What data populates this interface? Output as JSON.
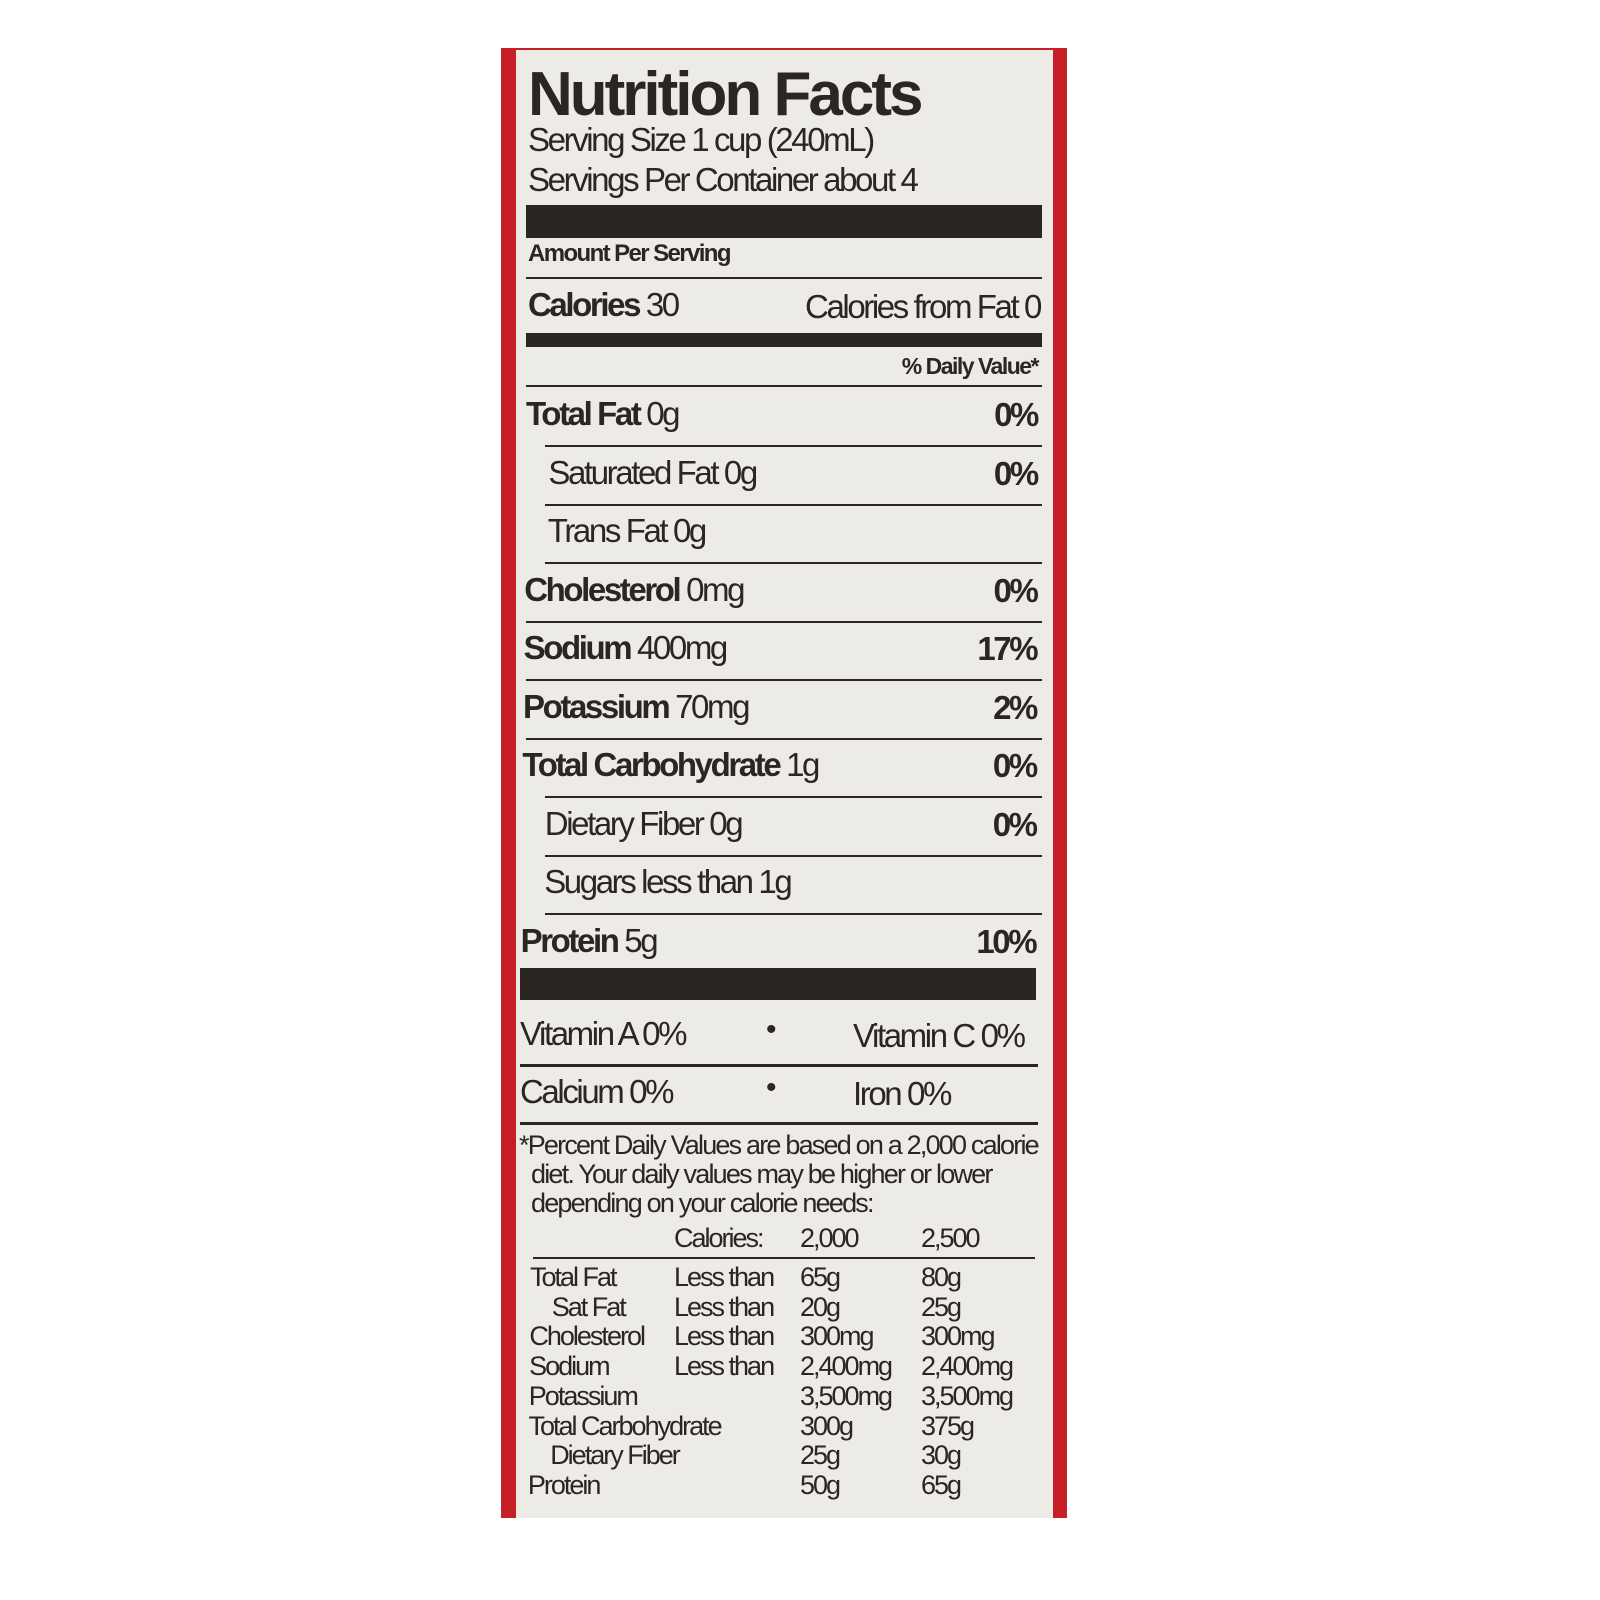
{
  "title": "Nutrition Facts",
  "serving_size": "Serving Size 1 cup (240mL)",
  "servings_per_container": "Servings Per Container about 4",
  "amount_per_serving": "Amount Per Serving",
  "calories_label": "Calories",
  "calories_value": "30",
  "calories_from_fat": "Calories from Fat 0",
  "daily_value_header": "% Daily Value*",
  "nutrients": [
    {
      "name": "Total Fat",
      "amount": "0g",
      "dv": "0%",
      "bold": true,
      "indent": false
    },
    {
      "name": "Saturated Fat",
      "amount": "0g",
      "dv": "0%",
      "bold": false,
      "indent": true
    },
    {
      "name": "Trans Fat",
      "amount": "0g",
      "dv": "",
      "bold": false,
      "indent": true
    },
    {
      "name": "Cholesterol",
      "amount": "0mg",
      "dv": "0%",
      "bold": true,
      "indent": false
    },
    {
      "name": "Sodium",
      "amount": "400mg",
      "dv": "17%",
      "bold": true,
      "indent": false
    },
    {
      "name": "Potassium",
      "amount": "70mg",
      "dv": "2%",
      "bold": true,
      "indent": false
    },
    {
      "name": "Total Carbohydrate",
      "amount": "1g",
      "dv": "0%",
      "bold": true,
      "indent": false
    },
    {
      "name": "Dietary Fiber",
      "amount": "0g",
      "dv": "0%",
      "bold": false,
      "indent": true
    },
    {
      "name": "Sugars",
      "amount": "less than 1g",
      "dv": "",
      "bold": false,
      "indent": true
    },
    {
      "name": "Protein",
      "amount": "5g",
      "dv": "10%",
      "bold": true,
      "indent": false
    }
  ],
  "vitamins": [
    {
      "left": "Vitamin A 0%",
      "bullet": "•",
      "right": "Vitamin C 0%"
    },
    {
      "left": "Calcium 0%",
      "bullet": "•",
      "right": "Iron 0%"
    }
  ],
  "footnote": [
    "*Percent Daily Values are based on a 2,000 calorie",
    "diet. Your daily values may be higher or lower",
    "depending on your calorie needs:"
  ],
  "reference_table": {
    "header": [
      "",
      "Calories:",
      "2,000",
      "2,500"
    ],
    "rows": [
      [
        "Total Fat",
        "Less than",
        "65g",
        "80g"
      ],
      [
        "Sat Fat",
        "Less than",
        "20g",
        "25g"
      ],
      [
        "Cholesterol",
        "Less than",
        "300mg",
        "300mg"
      ],
      [
        "Sodium",
        "Less than",
        "2,400mg",
        "2,400mg"
      ],
      [
        "Potassium",
        "",
        "3,500mg",
        "3,500mg"
      ],
      [
        "Total Carbohydrate",
        "",
        "300g",
        "375g"
      ],
      [
        "Dietary Fiber",
        "",
        "25g",
        "30g"
      ],
      [
        "Protein",
        "",
        "50g",
        "65g"
      ]
    ]
  },
  "colors": {
    "border": "#c62026",
    "label_bg": "#ecebe6",
    "ink": "#2b2624"
  }
}
